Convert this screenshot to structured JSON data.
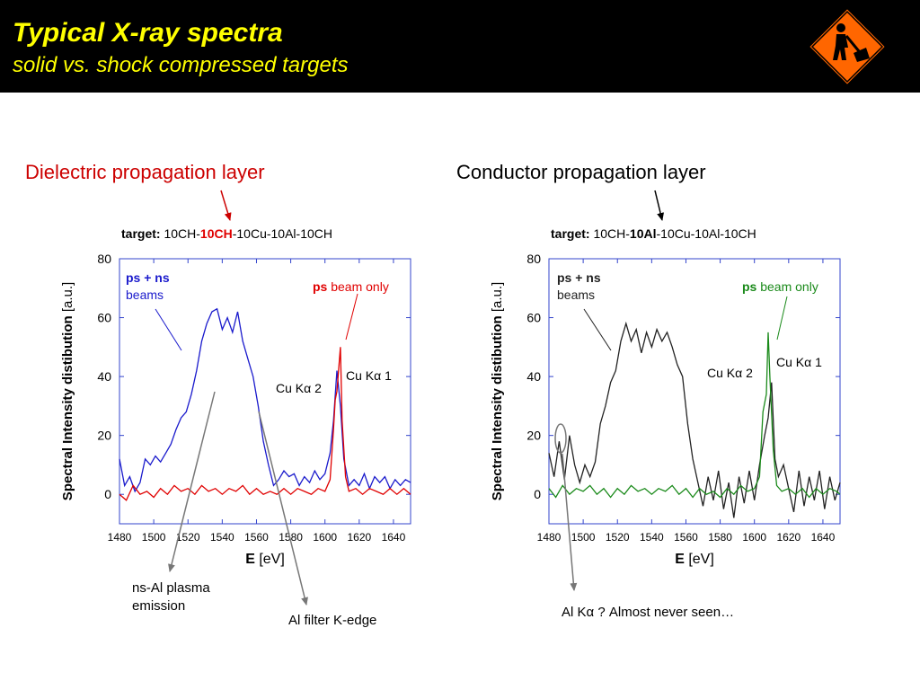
{
  "slide": {
    "title": "Typical X-ray spectra",
    "subtitle": "solid vs. shock compressed targets",
    "left_label": "Dielectric propagation layer",
    "right_label": "Conductor propagation layer",
    "notes": {
      "ns_al": [
        "ns-Al plasma",
        "emission"
      ],
      "al_filter": "Al filter K-edge",
      "al_ka": "Al Kα ?  Almost never seen…"
    },
    "colors": {
      "header_bg": "#000000",
      "title": "#ffff00",
      "left_label": "#cc0000",
      "right_label": "#000000",
      "sign": "#ff6600"
    },
    "icon": "road-work-sign-icon"
  },
  "chart_data": [
    {
      "type": "line",
      "target": {
        "prefix": "target:",
        "parts": [
          "10CH-",
          "10CH",
          "-10Cu-10Al-10CH"
        ],
        "highlight_color": "#e00000"
      },
      "xlabel": "E [eV]",
      "ylabel": "Spectral Intensity distibution [a.u.]",
      "xlim": [
        1480,
        1650
      ],
      "ylim": [
        -10,
        80
      ],
      "xticks": [
        1480,
        1500,
        1520,
        1540,
        1560,
        1580,
        1600,
        1620,
        1640
      ],
      "yticks": [
        0,
        20,
        40,
        60,
        80
      ],
      "legend": {
        "main": {
          "bold": "ps + ns",
          "rest": "beams",
          "color": "#1a1acc"
        },
        "alt": {
          "bold": "ps",
          "rest": " beam only",
          "color": "#e00000"
        }
      },
      "annotations": [
        "Cu Kα 1",
        "Cu Kα 2"
      ],
      "series": [
        {
          "name": "ps + ns beams",
          "color": "#1a1acc",
          "points": [
            [
              1480,
              12
            ],
            [
              1483,
              3
            ],
            [
              1486,
              6
            ],
            [
              1489,
              1
            ],
            [
              1492,
              4
            ],
            [
              1495,
              12
            ],
            [
              1498,
              10
            ],
            [
              1501,
              13
            ],
            [
              1504,
              11
            ],
            [
              1507,
              14
            ],
            [
              1510,
              17
            ],
            [
              1513,
              22
            ],
            [
              1516,
              26
            ],
            [
              1519,
              28
            ],
            [
              1522,
              34
            ],
            [
              1525,
              42
            ],
            [
              1528,
              52
            ],
            [
              1531,
              58
            ],
            [
              1534,
              62
            ],
            [
              1537,
              63
            ],
            [
              1540,
              56
            ],
            [
              1543,
              60
            ],
            [
              1546,
              55
            ],
            [
              1549,
              62
            ],
            [
              1552,
              52
            ],
            [
              1555,
              46
            ],
            [
              1558,
              40
            ],
            [
              1561,
              30
            ],
            [
              1564,
              18
            ],
            [
              1567,
              10
            ],
            [
              1570,
              3
            ],
            [
              1573,
              5
            ],
            [
              1576,
              8
            ],
            [
              1579,
              6
            ],
            [
              1582,
              7
            ],
            [
              1585,
              3
            ],
            [
              1588,
              6
            ],
            [
              1591,
              4
            ],
            [
              1594,
              8
            ],
            [
              1597,
              5
            ],
            [
              1600,
              7
            ],
            [
              1603,
              14
            ],
            [
              1605,
              25
            ],
            [
              1607,
              42
            ],
            [
              1609,
              30
            ],
            [
              1611,
              12
            ],
            [
              1614,
              3
            ],
            [
              1617,
              5
            ],
            [
              1620,
              3
            ],
            [
              1623,
              7
            ],
            [
              1626,
              2
            ],
            [
              1629,
              6
            ],
            [
              1632,
              4
            ],
            [
              1635,
              6
            ],
            [
              1638,
              2
            ],
            [
              1641,
              5
            ],
            [
              1644,
              3
            ],
            [
              1647,
              5
            ],
            [
              1650,
              4
            ]
          ]
        },
        {
          "name": "ps beam only",
          "color": "#e00000",
          "points": [
            [
              1480,
              0
            ],
            [
              1484,
              -2
            ],
            [
              1488,
              3
            ],
            [
              1492,
              0
            ],
            [
              1496,
              1
            ],
            [
              1500,
              -1
            ],
            [
              1504,
              2
            ],
            [
              1508,
              0
            ],
            [
              1512,
              3
            ],
            [
              1516,
              1
            ],
            [
              1520,
              2
            ],
            [
              1524,
              0
            ],
            [
              1528,
              3
            ],
            [
              1532,
              1
            ],
            [
              1536,
              2
            ],
            [
              1540,
              0
            ],
            [
              1544,
              2
            ],
            [
              1548,
              1
            ],
            [
              1552,
              3
            ],
            [
              1556,
              0
            ],
            [
              1560,
              2
            ],
            [
              1564,
              0
            ],
            [
              1568,
              1
            ],
            [
              1572,
              0
            ],
            [
              1576,
              2
            ],
            [
              1580,
              0
            ],
            [
              1584,
              2
            ],
            [
              1588,
              1
            ],
            [
              1592,
              0
            ],
            [
              1596,
              2
            ],
            [
              1600,
              1
            ],
            [
              1603,
              5
            ],
            [
              1605,
              22
            ],
            [
              1606,
              32
            ],
            [
              1607,
              35
            ],
            [
              1609,
              50
            ],
            [
              1610,
              25
            ],
            [
              1612,
              6
            ],
            [
              1614,
              1
            ],
            [
              1618,
              2
            ],
            [
              1622,
              0
            ],
            [
              1626,
              2
            ],
            [
              1630,
              1
            ],
            [
              1634,
              0
            ],
            [
              1638,
              2
            ],
            [
              1642,
              0
            ],
            [
              1646,
              2
            ],
            [
              1650,
              0
            ]
          ]
        }
      ]
    },
    {
      "type": "line",
      "target": {
        "prefix": "target:",
        "parts": [
          "10CH-",
          "10Al",
          "-10Cu-10Al-10CH"
        ],
        "highlight_color": "#000000"
      },
      "xlabel": "E [eV]",
      "ylabel": "Spectral Intensity distibution [a.u.]",
      "xlim": [
        1480,
        1650
      ],
      "ylim": [
        -10,
        80
      ],
      "xticks": [
        1480,
        1500,
        1520,
        1540,
        1560,
        1580,
        1600,
        1620,
        1640
      ],
      "yticks": [
        0,
        20,
        40,
        60,
        80
      ],
      "legend": {
        "main": {
          "bold": "ps + ns",
          "rest": "beams",
          "color": "#222222"
        },
        "alt": {
          "bold": "ps",
          "rest": " beam only",
          "color": "#1a8a1a"
        }
      },
      "annotations": [
        "Cu Kα 1",
        "Cu Kα 2"
      ],
      "series": [
        {
          "name": "ps + ns beams",
          "color": "#222222",
          "points": [
            [
              1480,
              14
            ],
            [
              1483,
              6
            ],
            [
              1486,
              18
            ],
            [
              1489,
              5
            ],
            [
              1492,
              20
            ],
            [
              1495,
              10
            ],
            [
              1498,
              4
            ],
            [
              1501,
              10
            ],
            [
              1504,
              6
            ],
            [
              1507,
              11
            ],
            [
              1510,
              24
            ],
            [
              1513,
              30
            ],
            [
              1516,
              38
            ],
            [
              1519,
              42
            ],
            [
              1522,
              52
            ],
            [
              1525,
              58
            ],
            [
              1528,
              52
            ],
            [
              1531,
              56
            ],
            [
              1534,
              48
            ],
            [
              1537,
              55
            ],
            [
              1540,
              50
            ],
            [
              1543,
              56
            ],
            [
              1546,
              52
            ],
            [
              1549,
              55
            ],
            [
              1552,
              50
            ],
            [
              1555,
              44
            ],
            [
              1558,
              40
            ],
            [
              1561,
              24
            ],
            [
              1564,
              12
            ],
            [
              1567,
              4
            ],
            [
              1570,
              -4
            ],
            [
              1573,
              6
            ],
            [
              1576,
              -2
            ],
            [
              1579,
              8
            ],
            [
              1582,
              -5
            ],
            [
              1585,
              4
            ],
            [
              1588,
              -8
            ],
            [
              1591,
              6
            ],
            [
              1594,
              -3
            ],
            [
              1597,
              8
            ],
            [
              1600,
              -2
            ],
            [
              1603,
              10
            ],
            [
              1606,
              20
            ],
            [
              1608,
              26
            ],
            [
              1610,
              38
            ],
            [
              1612,
              12
            ],
            [
              1614,
              6
            ],
            [
              1617,
              10
            ],
            [
              1620,
              2
            ],
            [
              1623,
              -6
            ],
            [
              1626,
              8
            ],
            [
              1629,
              -4
            ],
            [
              1632,
              6
            ],
            [
              1635,
              -2
            ],
            [
              1638,
              8
            ],
            [
              1641,
              -5
            ],
            [
              1644,
              6
            ],
            [
              1647,
              -2
            ],
            [
              1650,
              4
            ]
          ]
        },
        {
          "name": "ps beam only",
          "color": "#1a8a1a",
          "points": [
            [
              1480,
              2
            ],
            [
              1484,
              -1
            ],
            [
              1488,
              3
            ],
            [
              1492,
              0
            ],
            [
              1496,
              2
            ],
            [
              1500,
              1
            ],
            [
              1504,
              3
            ],
            [
              1508,
              0
            ],
            [
              1512,
              2
            ],
            [
              1516,
              -1
            ],
            [
              1520,
              2
            ],
            [
              1524,
              0
            ],
            [
              1528,
              3
            ],
            [
              1532,
              1
            ],
            [
              1536,
              2
            ],
            [
              1540,
              0
            ],
            [
              1544,
              2
            ],
            [
              1548,
              1
            ],
            [
              1552,
              3
            ],
            [
              1556,
              0
            ],
            [
              1560,
              2
            ],
            [
              1564,
              -1
            ],
            [
              1568,
              2
            ],
            [
              1572,
              0
            ],
            [
              1576,
              1
            ],
            [
              1580,
              -1
            ],
            [
              1584,
              2
            ],
            [
              1588,
              0
            ],
            [
              1592,
              3
            ],
            [
              1596,
              1
            ],
            [
              1600,
              2
            ],
            [
              1603,
              6
            ],
            [
              1605,
              28
            ],
            [
              1607,
              34
            ],
            [
              1608,
              55
            ],
            [
              1609,
              40
            ],
            [
              1611,
              15
            ],
            [
              1613,
              3
            ],
            [
              1616,
              1
            ],
            [
              1620,
              2
            ],
            [
              1624,
              0
            ],
            [
              1628,
              2
            ],
            [
              1632,
              -1
            ],
            [
              1636,
              2
            ],
            [
              1640,
              0
            ],
            [
              1644,
              2
            ],
            [
              1648,
              1
            ],
            [
              1650,
              0
            ]
          ]
        }
      ]
    }
  ]
}
